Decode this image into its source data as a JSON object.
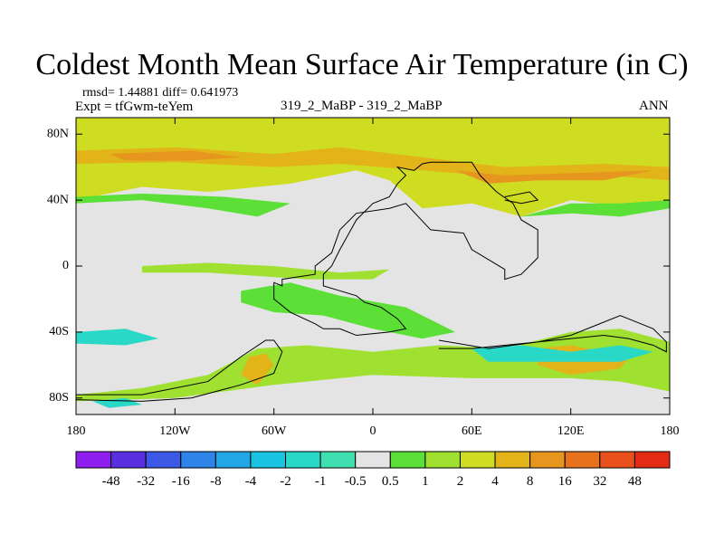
{
  "header": {
    "title": "Coldest Month Mean Surface Air Temperature (in C)",
    "stats": "rmsd= 1.44881 diff= 0.641973",
    "expt": "Expt = tfGwm-teYem",
    "case": "319_2_MaBP - 319_2_MaBP",
    "season": "ANN"
  },
  "chart_data": {
    "type": "heatmap",
    "title": "Coldest Month Mean Surface Air Temperature (in C)",
    "xlabel": "",
    "ylabel": "",
    "xlim": [
      -180,
      180
    ],
    "ylim": [
      -90,
      90
    ],
    "x_ticks": [
      {
        "value": -180,
        "label": "180"
      },
      {
        "value": -120,
        "label": "120W"
      },
      {
        "value": -60,
        "label": "60W"
      },
      {
        "value": 0,
        "label": "0"
      },
      {
        "value": 60,
        "label": "60E"
      },
      {
        "value": 120,
        "label": "120E"
      },
      {
        "value": 180,
        "label": "180"
      }
    ],
    "y_ticks": [
      {
        "value": 80,
        "label": "80N"
      },
      {
        "value": 40,
        "label": "40N"
      },
      {
        "value": 0,
        "label": "0"
      },
      {
        "value": -40,
        "label": "40S"
      },
      {
        "value": -80,
        "label": "80S"
      }
    ],
    "colorbar": {
      "labels": [
        "-48",
        "-32",
        "-16",
        "-8",
        "-4",
        "-2",
        "-1",
        "-0.5",
        "0.5",
        "1",
        "2",
        "4",
        "8",
        "16",
        "32",
        "48"
      ],
      "colors": [
        "#8f1fef",
        "#5a2fe0",
        "#3b58e6",
        "#2f84e8",
        "#22a6e6",
        "#18c4e0",
        "#2ad8c8",
        "#3fdfb0",
        "#e4e4e4",
        "#5cdf36",
        "#9fe030",
        "#cfdd22",
        "#e2b41a",
        "#e6961e",
        "#e8731c",
        "#e8521a",
        "#e32a14"
      ]
    },
    "regions": [
      {
        "name": "arctic-band",
        "color": "#cfdd22",
        "points": [
          [
            -180,
            90
          ],
          [
            180,
            90
          ],
          [
            180,
            38
          ],
          [
            160,
            35
          ],
          [
            120,
            40
          ],
          [
            90,
            30
          ],
          [
            60,
            38
          ],
          [
            30,
            35
          ],
          [
            10,
            52
          ],
          [
            -10,
            58
          ],
          [
            -50,
            50
          ],
          [
            -100,
            45
          ],
          [
            -140,
            48
          ],
          [
            -180,
            40
          ]
        ]
      },
      {
        "name": "high-lat-warm",
        "color": "#e2b41a",
        "points": [
          [
            -180,
            70
          ],
          [
            -120,
            72
          ],
          [
            -60,
            68
          ],
          [
            -20,
            72
          ],
          [
            30,
            66
          ],
          [
            80,
            60
          ],
          [
            140,
            62
          ],
          [
            180,
            60
          ],
          [
            180,
            52
          ],
          [
            140,
            55
          ],
          [
            80,
            54
          ],
          [
            30,
            58
          ],
          [
            -20,
            62
          ],
          [
            -60,
            60
          ],
          [
            -120,
            63
          ],
          [
            -180,
            62
          ]
        ]
      },
      {
        "name": "high-lat-hot-1",
        "color": "#e6961e",
        "points": [
          [
            -160,
            68
          ],
          [
            -110,
            70
          ],
          [
            -80,
            66
          ],
          [
            -110,
            64
          ],
          [
            -150,
            64
          ]
        ]
      },
      {
        "name": "high-lat-hot-2",
        "color": "#e6961e",
        "points": [
          [
            50,
            58
          ],
          [
            80,
            55
          ],
          [
            110,
            56
          ],
          [
            140,
            57
          ],
          [
            170,
            58
          ],
          [
            140,
            52
          ],
          [
            100,
            52
          ],
          [
            70,
            50
          ]
        ]
      },
      {
        "name": "nh-green-1",
        "color": "#5cdf36",
        "points": [
          [
            -180,
            38
          ],
          [
            -140,
            40
          ],
          [
            -100,
            35
          ],
          [
            -70,
            30
          ],
          [
            -50,
            38
          ],
          [
            -90,
            42
          ],
          [
            -140,
            44
          ],
          [
            -180,
            42
          ]
        ]
      },
      {
        "name": "nh-green-2",
        "color": "#5cdf36",
        "points": [
          [
            90,
            30
          ],
          [
            120,
            32
          ],
          [
            150,
            30
          ],
          [
            180,
            35
          ],
          [
            180,
            40
          ],
          [
            150,
            38
          ],
          [
            120,
            38
          ]
        ]
      },
      {
        "name": "tropics-green",
        "color": "#9fe030",
        "points": [
          [
            -140,
            0
          ],
          [
            -100,
            2
          ],
          [
            -60,
            0
          ],
          [
            -20,
            -4
          ],
          [
            10,
            -2
          ],
          [
            0,
            -8
          ],
          [
            -40,
            -8
          ],
          [
            -100,
            -4
          ],
          [
            -140,
            -4
          ]
        ]
      },
      {
        "name": "sa-green",
        "color": "#5cdf36",
        "points": [
          [
            -80,
            -15
          ],
          [
            -50,
            -10
          ],
          [
            -20,
            -18
          ],
          [
            20,
            -25
          ],
          [
            50,
            -40
          ],
          [
            30,
            -44
          ],
          [
            0,
            -38
          ],
          [
            -30,
            -30
          ],
          [
            -60,
            -28
          ],
          [
            -80,
            -22
          ]
        ]
      },
      {
        "name": "sh-band",
        "color": "#9fe030",
        "points": [
          [
            -180,
            -78
          ],
          [
            -140,
            -74
          ],
          [
            -100,
            -66
          ],
          [
            -70,
            -50
          ],
          [
            -40,
            -48
          ],
          [
            0,
            -52
          ],
          [
            40,
            -48
          ],
          [
            80,
            -50
          ],
          [
            120,
            -40
          ],
          [
            150,
            -38
          ],
          [
            180,
            -46
          ],
          [
            180,
            -76
          ],
          [
            150,
            -70
          ],
          [
            120,
            -68
          ],
          [
            60,
            -68
          ],
          [
            0,
            -66
          ],
          [
            -60,
            -72
          ],
          [
            -120,
            -80
          ],
          [
            -180,
            -82
          ]
        ]
      },
      {
        "name": "sh-warm-1",
        "color": "#e2b41a",
        "points": [
          [
            -75,
            -55
          ],
          [
            -65,
            -53
          ],
          [
            -60,
            -60
          ],
          [
            -70,
            -72
          ],
          [
            -80,
            -66
          ]
        ]
      },
      {
        "name": "sh-warm-2",
        "color": "#e2b41a",
        "points": [
          [
            100,
            -50
          ],
          [
            120,
            -48
          ],
          [
            140,
            -52
          ],
          [
            160,
            -50
          ],
          [
            150,
            -62
          ],
          [
            120,
            -66
          ],
          [
            100,
            -60
          ]
        ]
      },
      {
        "name": "sh-cyan-1",
        "color": "#2ad8c8",
        "points": [
          [
            -180,
            -40
          ],
          [
            -150,
            -38
          ],
          [
            -130,
            -44
          ],
          [
            -150,
            -48
          ],
          [
            -180,
            -47
          ]
        ]
      },
      {
        "name": "sh-cyan-2",
        "color": "#2ad8c8",
        "points": [
          [
            60,
            -50
          ],
          [
            90,
            -48
          ],
          [
            120,
            -52
          ],
          [
            150,
            -48
          ],
          [
            170,
            -52
          ],
          [
            150,
            -58
          ],
          [
            110,
            -58
          ],
          [
            70,
            -58
          ]
        ]
      },
      {
        "name": "sh-cyan-3",
        "color": "#2ad8c8",
        "points": [
          [
            -170,
            -82
          ],
          [
            -150,
            -80
          ],
          [
            -140,
            -84
          ],
          [
            -160,
            -86
          ]
        ]
      }
    ],
    "coastlines": [
      {
        "name": "land-outline-north",
        "points": [
          [
            35,
            63
          ],
          [
            60,
            63
          ],
          [
            65,
            55
          ],
          [
            75,
            45
          ],
          [
            85,
            38
          ],
          [
            90,
            28
          ],
          [
            100,
            22
          ],
          [
            100,
            5
          ],
          [
            90,
            -5
          ],
          [
            80,
            -8
          ],
          [
            80,
            -2
          ],
          [
            60,
            10
          ],
          [
            55,
            20
          ],
          [
            35,
            22
          ],
          [
            20,
            38
          ],
          [
            10,
            35
          ],
          [
            -10,
            32
          ],
          [
            -20,
            22
          ],
          [
            -25,
            8
          ],
          [
            -35,
            0
          ],
          [
            -35,
            -5
          ],
          [
            -55,
            -8
          ],
          [
            -55,
            -12
          ],
          [
            -60,
            -10
          ],
          [
            -60,
            -20
          ],
          [
            -50,
            -28
          ],
          [
            -35,
            -35
          ],
          [
            -30,
            -38
          ],
          [
            -20,
            -38
          ],
          [
            -10,
            -42
          ],
          [
            10,
            -40
          ],
          [
            20,
            -38
          ],
          [
            15,
            -32
          ],
          [
            5,
            -25
          ],
          [
            -5,
            -22
          ],
          [
            -10,
            -18
          ],
          [
            -20,
            -15
          ],
          [
            -30,
            -12
          ],
          [
            -30,
            -5
          ],
          [
            -25,
            0
          ],
          [
            -20,
            10
          ],
          [
            -10,
            28
          ],
          [
            0,
            38
          ],
          [
            10,
            42
          ],
          [
            15,
            50
          ],
          [
            20,
            55
          ],
          [
            15,
            60
          ],
          [
            25,
            58
          ],
          [
            30,
            62
          ],
          [
            35,
            63
          ]
        ]
      },
      {
        "name": "land-outline-south",
        "points": [
          [
            -180,
            -78
          ],
          [
            -140,
            -78
          ],
          [
            -100,
            -70
          ],
          [
            -80,
            -55
          ],
          [
            -65,
            -45
          ],
          [
            -60,
            -45
          ],
          [
            -55,
            -52
          ],
          [
            -60,
            -65
          ],
          [
            -80,
            -72
          ],
          [
            -110,
            -80
          ],
          [
            -140,
            -82
          ],
          [
            -180,
            -81
          ]
        ]
      },
      {
        "name": "antarctic-outline",
        "points": [
          [
            40,
            -45
          ],
          [
            70,
            -50
          ],
          [
            100,
            -46
          ],
          [
            120,
            -42
          ],
          [
            135,
            -36
          ],
          [
            150,
            -30
          ],
          [
            160,
            -34
          ],
          [
            170,
            -38
          ],
          [
            178,
            -46
          ],
          [
            178,
            -52
          ],
          [
            170,
            -48
          ],
          [
            155,
            -44
          ],
          [
            140,
            -42
          ],
          [
            120,
            -44
          ],
          [
            100,
            -46
          ],
          [
            80,
            -48
          ],
          [
            60,
            -50
          ],
          [
            40,
            -50
          ]
        ]
      },
      {
        "name": "arctic-island",
        "points": [
          [
            80,
            42
          ],
          [
            95,
            45
          ],
          [
            100,
            40
          ],
          [
            90,
            38
          ],
          [
            80,
            40
          ]
        ]
      }
    ]
  }
}
